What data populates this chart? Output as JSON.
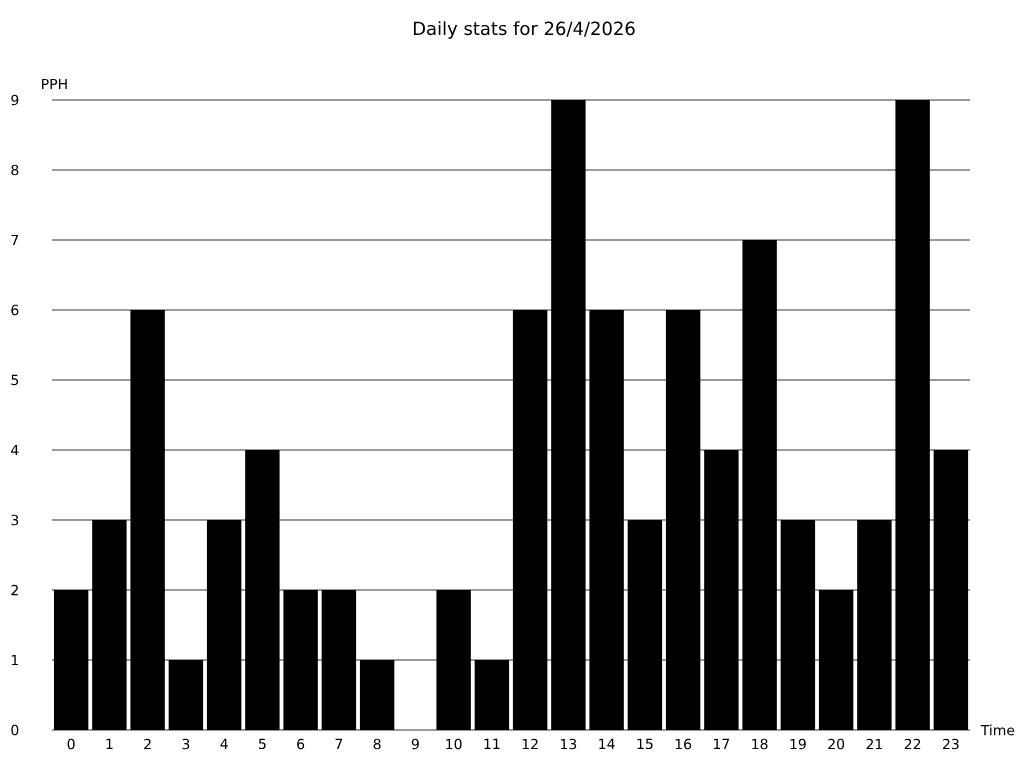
{
  "chart_data": {
    "type": "bar",
    "title": "Daily stats for 26/4/2026",
    "xlabel": "Time",
    "ylabel": "PPH",
    "categories": [
      "0",
      "1",
      "2",
      "3",
      "4",
      "5",
      "6",
      "7",
      "8",
      "9",
      "10",
      "11",
      "12",
      "13",
      "14",
      "15",
      "16",
      "17",
      "18",
      "19",
      "20",
      "21",
      "22",
      "23"
    ],
    "values": [
      2,
      3,
      6,
      1,
      3,
      4,
      2,
      2,
      1,
      0,
      2,
      1,
      6,
      9,
      6,
      3,
      6,
      4,
      7,
      3,
      2,
      3,
      9,
      4
    ],
    "color": "#000000",
    "ylim": [
      0,
      9
    ],
    "yticks": [
      0,
      1,
      2,
      3,
      4,
      5,
      6,
      7,
      8,
      9
    ],
    "grid": "y"
  }
}
